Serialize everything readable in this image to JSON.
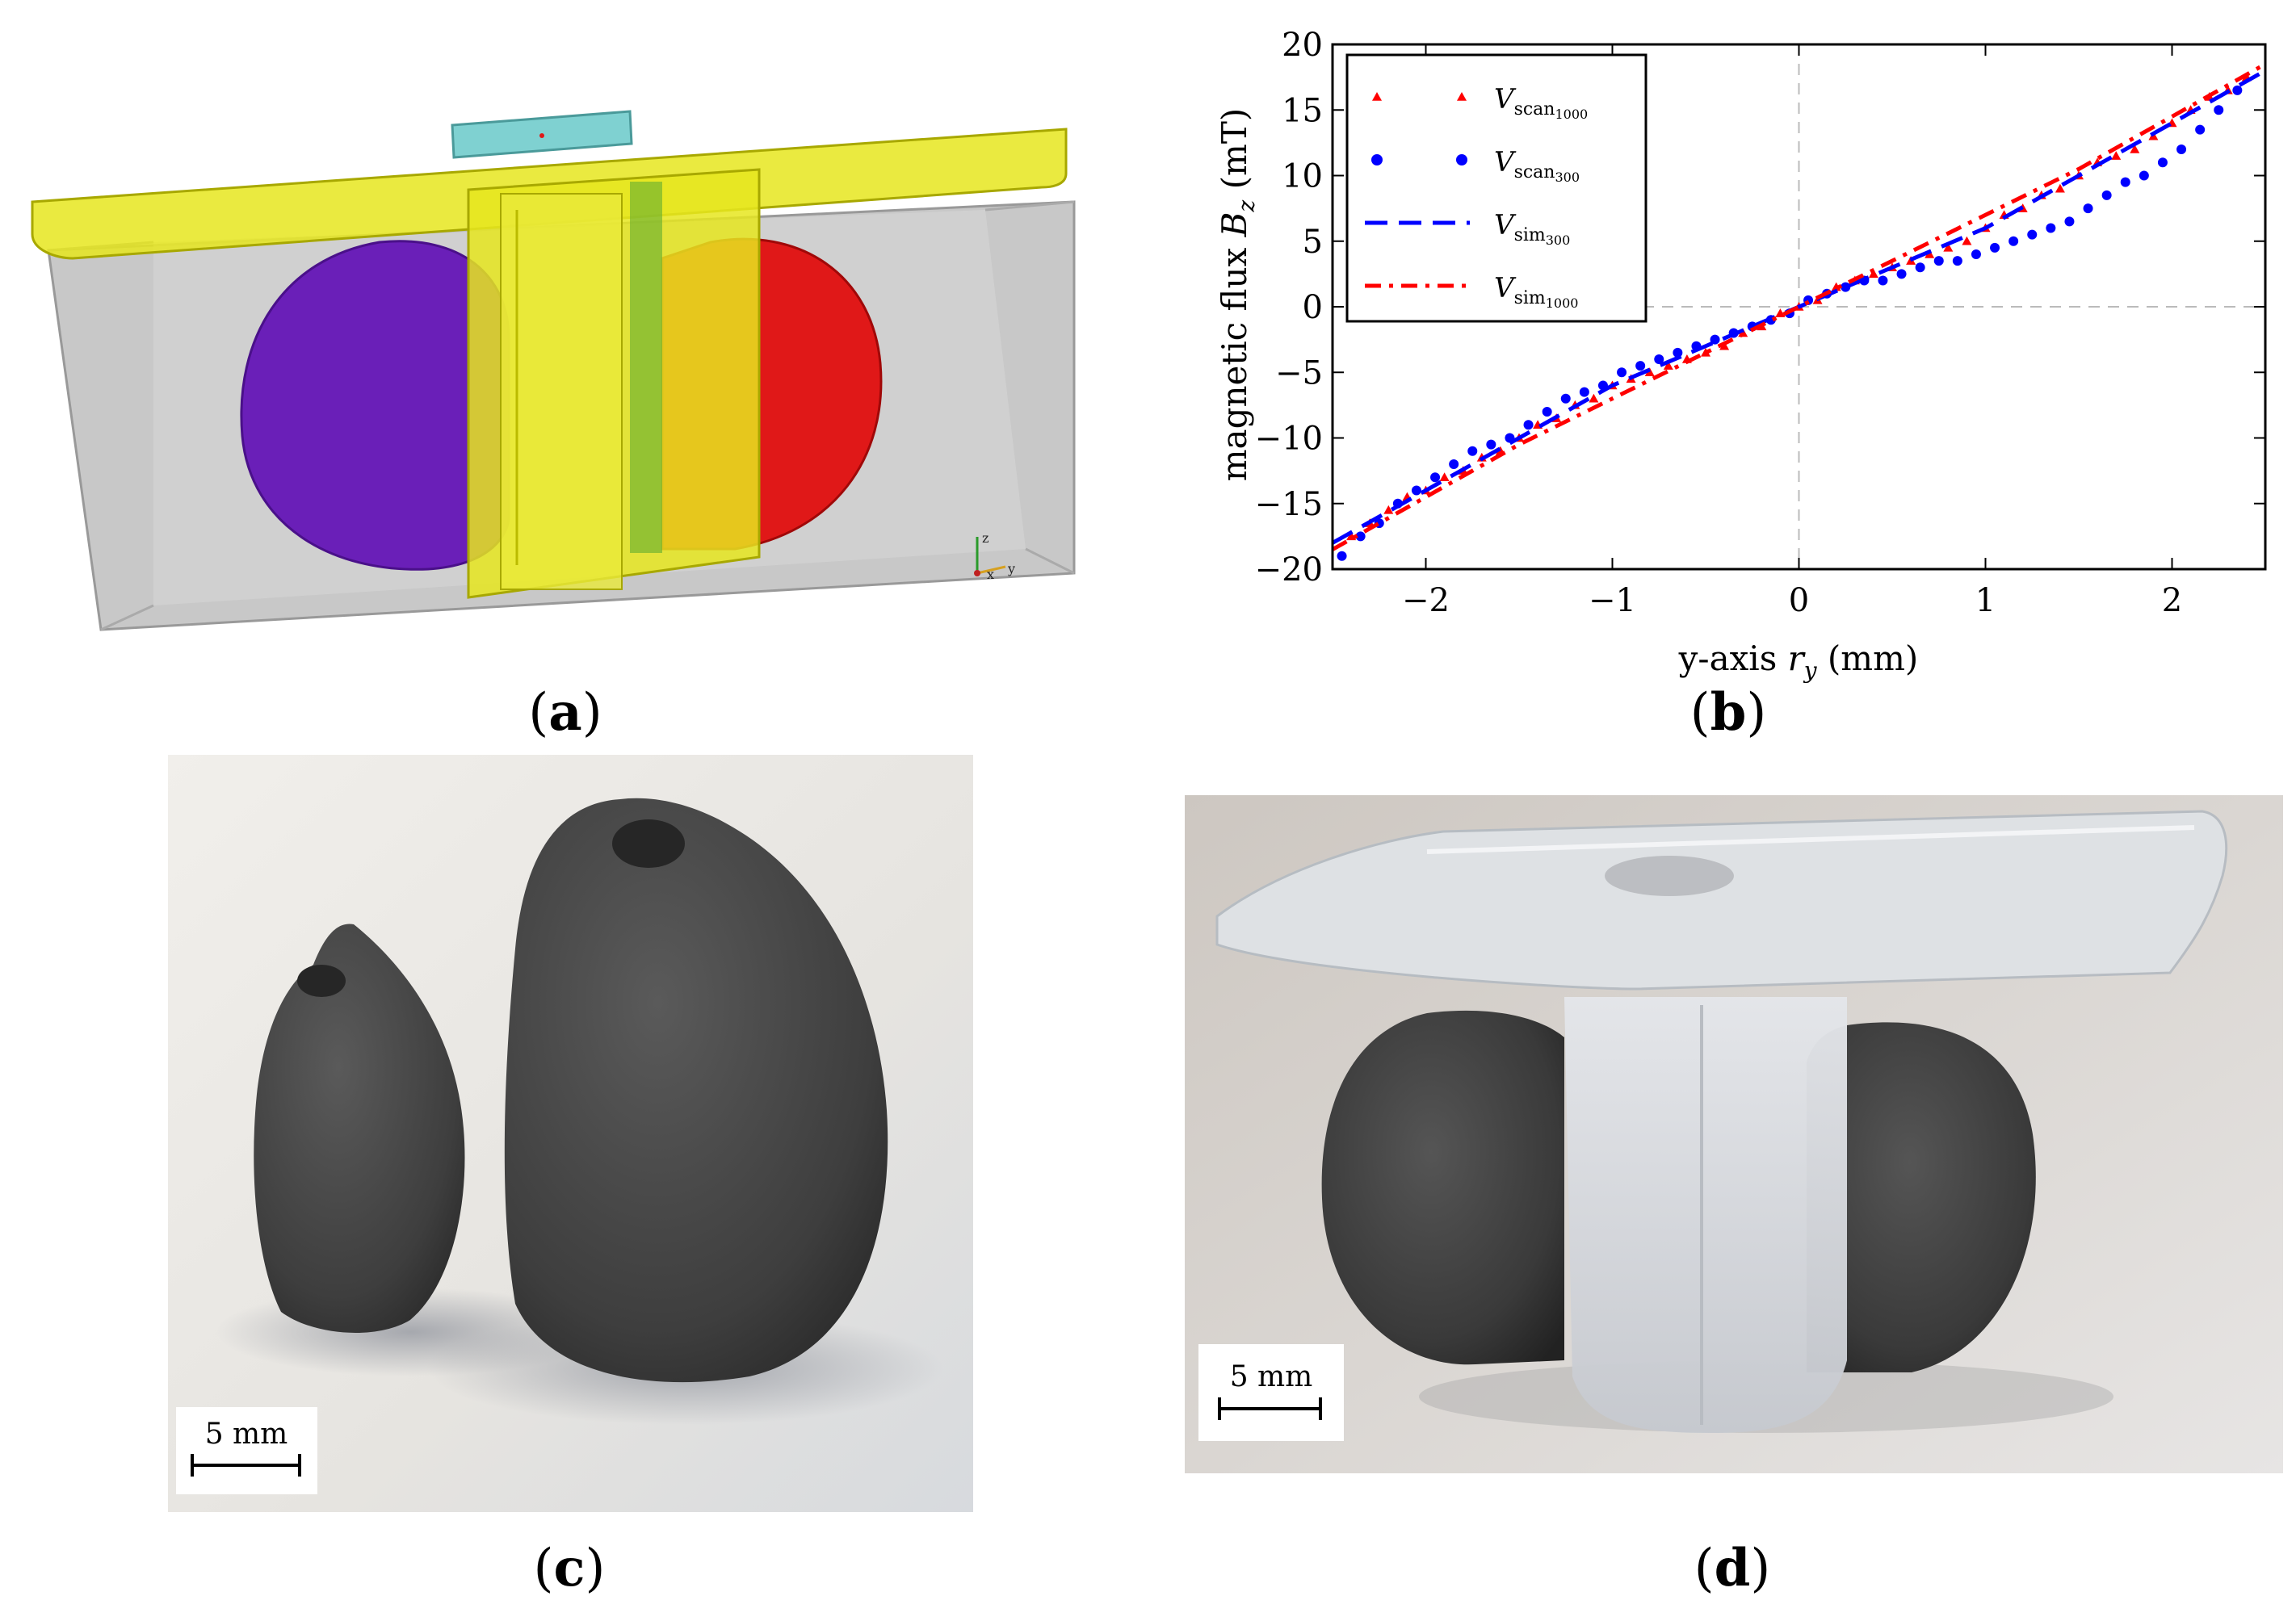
{
  "captions": {
    "a": {
      "open": "(",
      "letter": "a",
      "close": ")"
    },
    "b": {
      "open": "(",
      "letter": "b",
      "close": ")"
    },
    "c": {
      "open": "(",
      "letter": "c",
      "close": ")"
    },
    "d": {
      "open": "(",
      "letter": "d",
      "close": ")"
    }
  },
  "panel_a": {
    "axis_labels": {
      "z": "z",
      "x": "x",
      "y": "y"
    },
    "colors": {
      "holder": "#d8d820",
      "left_magnet": "#6a1fb8",
      "right_magnet": "#e01818",
      "housing": "#c8c8c8",
      "sensor": "#7fd1d1"
    }
  },
  "panel_c": {
    "scalebar": "5 mm"
  },
  "panel_d": {
    "scalebar": "5 mm"
  },
  "chart_data": {
    "type": "line",
    "title": "",
    "xlabel": "y-axis r_y (mm)",
    "ylabel": "magnetic flux B_z (mT)",
    "xlim": [
      -2.5,
      2.5
    ],
    "ylim": [
      -20,
      20
    ],
    "xticks": [
      -2,
      -1,
      0,
      1,
      2
    ],
    "yticks": [
      -20,
      -15,
      -10,
      -5,
      0,
      5,
      10,
      15,
      20
    ],
    "xtick_labels": [
      "−2",
      "−1",
      "0",
      "1",
      "2"
    ],
    "ytick_labels": [
      "−20",
      "−15",
      "−10",
      "−5",
      "0",
      "5",
      "10",
      "15",
      "20"
    ],
    "legend": [
      {
        "base": "V",
        "sub": "scan",
        "subsub": "1000",
        "style": "triangle",
        "color": "#ff0000"
      },
      {
        "base": "V",
        "sub": "scan",
        "subsub": "300",
        "style": "dot",
        "color": "#0000ff"
      },
      {
        "base": "V",
        "sub": "sim",
        "subsub": "300",
        "style": "dashed",
        "color": "#0000ff"
      },
      {
        "base": "V",
        "sub": "sim",
        "subsub": "1000",
        "style": "dashdot",
        "color": "#ff0000"
      }
    ],
    "series": [
      {
        "name": "V_scan1000",
        "style": "triangle",
        "color": "#ff0000",
        "x": [
          -2.4,
          -2.3,
          -2.2,
          -2.1,
          -2.0,
          -1.9,
          -1.8,
          -1.7,
          -1.6,
          -1.5,
          -1.4,
          -1.3,
          -1.2,
          -1.1,
          -1.0,
          -0.9,
          -0.8,
          -0.7,
          -0.6,
          -0.5,
          -0.4,
          -0.3,
          -0.2,
          -0.1,
          0.0,
          0.1,
          0.2,
          0.3,
          0.4,
          0.5,
          0.6,
          0.7,
          0.8,
          0.9,
          1.0,
          1.1,
          1.2,
          1.3,
          1.4,
          1.5,
          1.6,
          1.7,
          1.8,
          1.9,
          2.0,
          2.1,
          2.2,
          2.3,
          2.4
        ],
        "y": [
          -17.5,
          -16.5,
          -15.5,
          -14.5,
          -14.0,
          -13.0,
          -12.5,
          -11.5,
          -11.0,
          -10.0,
          -9.0,
          -8.5,
          -7.5,
          -7.0,
          -6.0,
          -5.5,
          -5.0,
          -4.5,
          -4.0,
          -3.5,
          -3.0,
          -2.0,
          -1.5,
          -0.5,
          0.0,
          0.5,
          1.5,
          2.0,
          2.5,
          3.0,
          3.5,
          4.0,
          4.5,
          5.0,
          6.0,
          7.0,
          7.5,
          8.5,
          9.0,
          10.0,
          11.0,
          11.5,
          12.0,
          13.0,
          14.0,
          15.0,
          16.0,
          16.5,
          17.5
        ]
      },
      {
        "name": "V_scan300",
        "style": "dot",
        "color": "#0000ff",
        "x": [
          -2.45,
          -2.35,
          -2.25,
          -2.15,
          -2.05,
          -1.95,
          -1.85,
          -1.75,
          -1.65,
          -1.55,
          -1.45,
          -1.35,
          -1.25,
          -1.15,
          -1.05,
          -0.95,
          -0.85,
          -0.75,
          -0.65,
          -0.55,
          -0.45,
          -0.35,
          -0.25,
          -0.15,
          -0.05,
          0.05,
          0.15,
          0.25,
          0.35,
          0.45,
          0.55,
          0.65,
          0.75,
          0.85,
          0.95,
          1.05,
          1.15,
          1.25,
          1.35,
          1.45,
          1.55,
          1.65,
          1.75,
          1.85,
          1.95,
          2.05,
          2.15,
          2.25,
          2.35
        ],
        "y": [
          -19.0,
          -17.5,
          -16.5,
          -15.0,
          -14.0,
          -13.0,
          -12.0,
          -11.0,
          -10.5,
          -10.0,
          -9.0,
          -8.0,
          -7.0,
          -6.5,
          -6.0,
          -5.0,
          -4.5,
          -4.0,
          -3.5,
          -3.0,
          -2.5,
          -2.0,
          -1.5,
          -1.0,
          -0.5,
          0.5,
          1.0,
          1.5,
          2.0,
          2.0,
          2.5,
          3.0,
          3.5,
          3.5,
          4.0,
          4.5,
          5.0,
          5.5,
          6.0,
          6.5,
          7.5,
          8.5,
          9.5,
          10.0,
          11.0,
          12.0,
          13.5,
          15.0,
          16.5
        ]
      },
      {
        "name": "V_sim300",
        "style": "dashed",
        "color": "#0000ff",
        "x": [
          -2.5,
          -2.0,
          -1.5,
          -1.0,
          -0.5,
          0.0,
          0.5,
          1.0,
          1.5,
          2.0,
          2.5
        ],
        "y": [
          -18.0,
          -14.0,
          -10.0,
          -6.0,
          -3.0,
          0.0,
          3.0,
          6.0,
          10.0,
          14.0,
          18.0
        ]
      },
      {
        "name": "V_sim1000",
        "style": "dashdot",
        "color": "#ff0000",
        "x": [
          -2.5,
          -2.0,
          -1.5,
          -1.0,
          -0.5,
          0.0,
          0.5,
          1.0,
          1.5,
          2.0,
          2.5
        ],
        "y": [
          -18.5,
          -14.5,
          -10.5,
          -7.0,
          -3.5,
          0.0,
          3.5,
          7.0,
          10.5,
          14.5,
          18.5
        ]
      }
    ]
  }
}
